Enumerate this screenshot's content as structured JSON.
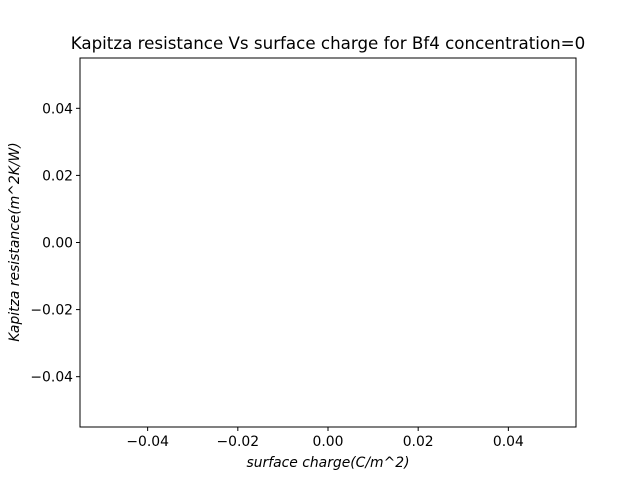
{
  "chart_data": {
    "type": "scatter",
    "title": "Kapitza resistance Vs surface charge for Bf4 concentration=0",
    "xlabel": "surface charge(C/m^2)",
    "ylabel": "Kapitza resistance(m^2K/W)",
    "xlim": [
      -0.055,
      0.055
    ],
    "ylim": [
      -0.055,
      0.055
    ],
    "xticks": [
      -0.04,
      -0.02,
      0.0,
      0.02,
      0.04
    ],
    "xtick_labels": [
      "−0.04",
      "−0.02",
      "0.00",
      "0.02",
      "0.04"
    ],
    "yticks": [
      -0.04,
      -0.02,
      0.0,
      0.02,
      0.04
    ],
    "ytick_labels": [
      "−0.04",
      "−0.02",
      "0.00",
      "0.02",
      "0.04"
    ],
    "grid": false,
    "series": [
      {
        "x": [],
        "y": []
      }
    ]
  }
}
